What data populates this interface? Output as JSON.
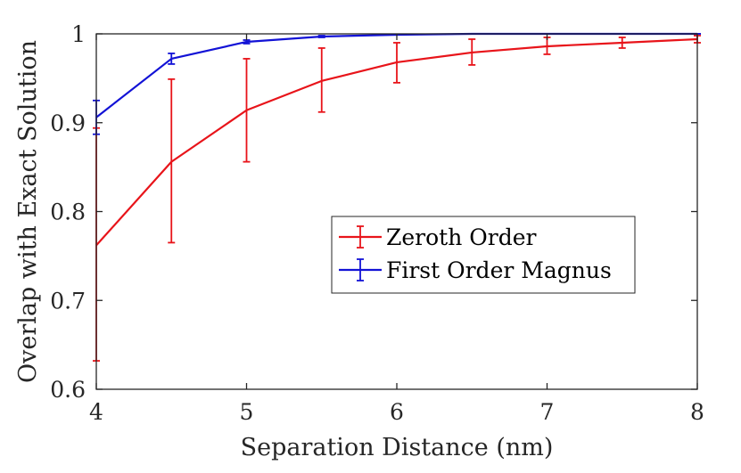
{
  "chart_data": {
    "type": "line",
    "title": "",
    "xlabel": "Separation Distance (nm)",
    "ylabel": "Overlap with Exact Solution",
    "xlim": [
      4,
      8
    ],
    "ylim": [
      0.6,
      1.0
    ],
    "xticks": [
      "4",
      "5",
      "6",
      "7",
      "8"
    ],
    "yticks": [
      "0.6",
      "0.7",
      "0.8",
      "0.9",
      "1"
    ],
    "x": [
      4,
      4.5,
      5,
      5.5,
      6,
      6.5,
      7,
      7.5,
      8
    ],
    "grid": false,
    "legend_position": "center-right",
    "series": [
      {
        "name": "Zeroth Order",
        "color": "#e8141a",
        "values": [
          0.762,
          0.856,
          0.914,
          0.947,
          0.968,
          0.979,
          0.986,
          0.99,
          0.994
        ],
        "err_low": [
          0.13,
          0.091,
          0.058,
          0.035,
          0.023,
          0.014,
          0.009,
          0.006,
          0.004
        ],
        "err_high": [
          0.132,
          0.093,
          0.058,
          0.037,
          0.022,
          0.015,
          0.01,
          0.006,
          0.004
        ]
      },
      {
        "name": "First Order Magnus",
        "color": "#1212d6",
        "values": [
          0.906,
          0.972,
          0.991,
          0.997,
          0.999,
          1.0,
          1.0,
          1.0,
          1.0
        ],
        "err_low": [
          0.019,
          0.006,
          0.002,
          0.001,
          0.0,
          0.0,
          0.0,
          0.0,
          0.0
        ],
        "err_high": [
          0.019,
          0.006,
          0.002,
          0.001,
          0.0,
          0.0,
          0.0,
          0.0,
          0.0
        ]
      }
    ]
  }
}
